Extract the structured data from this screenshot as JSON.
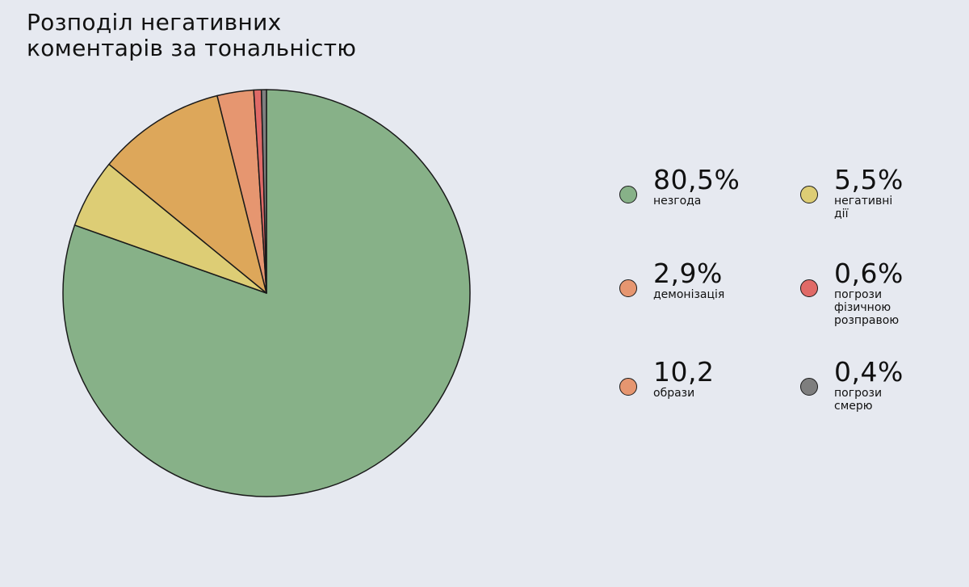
{
  "title": {
    "line1": "Розподіл негативних",
    "line2": "коментарів за тональністю"
  },
  "chart_data": {
    "type": "pie",
    "title": "Розподіл негативних коментарів за тональністю",
    "start_angle": "12 o'clock",
    "direction": "clockwise",
    "slices": [
      {
        "label": "незгода",
        "value": 80.5,
        "display": "80,5%",
        "color": "#87b188"
      },
      {
        "label": "негативні дії",
        "value": 5.5,
        "display": "5,5%",
        "color": "#ddcd75"
      },
      {
        "label": "образи",
        "value": 10.2,
        "display": "10,2",
        "color": "#dda75a"
      },
      {
        "label": "демонізація",
        "value": 2.9,
        "display": "2,9%",
        "color": "#e69670"
      },
      {
        "label": "погрози фізичною розправою",
        "value": 0.6,
        "display": "0,6%",
        "color": "#e06a67"
      },
      {
        "label": "погрози смерю",
        "value": 0.4,
        "display": "0,4%",
        "color": "#7e7e7e"
      }
    ]
  },
  "legend": [
    {
      "value": "80,5%",
      "lines": [
        "незгода"
      ],
      "color": "#87b188"
    },
    {
      "value": "5,5%",
      "lines": [
        "негативні",
        "дії"
      ],
      "color": "#ddcd75"
    },
    {
      "value": "2,9%",
      "lines": [
        "демонізація"
      ],
      "color": "#e69670"
    },
    {
      "value": "0,6%",
      "lines": [
        "погрози",
        "фізичною",
        "розправою"
      ],
      "color": "#e06a67"
    },
    {
      "value": "10,2",
      "lines": [
        "образи"
      ],
      "color": "#e69670"
    },
    {
      "value": "0,4%",
      "lines": [
        "погрози",
        "смерю"
      ],
      "color": "#7e7e7e"
    }
  ]
}
